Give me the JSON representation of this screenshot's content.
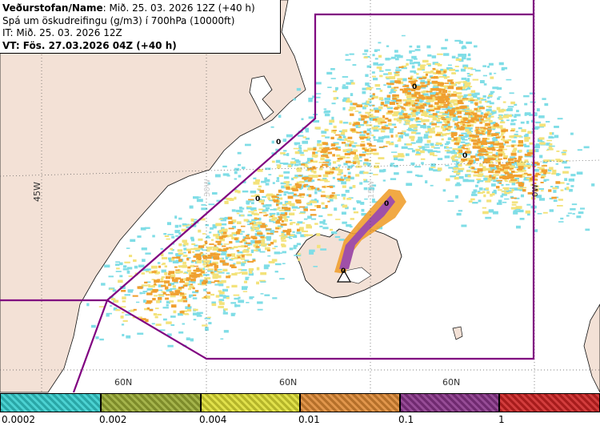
{
  "info": {
    "line1_bold": "Veðurstofan/Name",
    "line1_rest": ": Mið. 25. 03. 2026 12Z (+40 h)",
    "line2": "Spá um öskudreifingu (g/m3) í 700hPa (10000ft)",
    "line3": "IT: Mið. 25. 03. 2026 12Z",
    "line4": "VT: Fös. 27.03.2026 04Z (+40 h)"
  },
  "grid_labels": {
    "lon_45w": "45W",
    "lon_30w": "30W",
    "lon_15w": "15W",
    "lon_0w": "0W",
    "lat_a": "60N",
    "lat_b": "60N",
    "lat_c": "60N"
  },
  "markers": [
    "0",
    "0",
    "0",
    "0",
    "0",
    "0"
  ],
  "legend": {
    "labels": [
      "0.0002",
      "0.002",
      "0.004",
      "0.01",
      "0.1",
      "1"
    ],
    "colors": [
      "#33cccc",
      "#99aa33",
      "#dddd33",
      "#dd8833",
      "#883388",
      "#cc2222"
    ]
  },
  "colors": {
    "land": "#f3e1d6",
    "region_line": "#800080",
    "ash_low": "#9ee6ee",
    "ash_mid": "#f5e48a",
    "ash_high": "#f0a030",
    "ash_peak": "#a050a8"
  },
  "icons": [
    "volcano-triangle-icon"
  ]
}
